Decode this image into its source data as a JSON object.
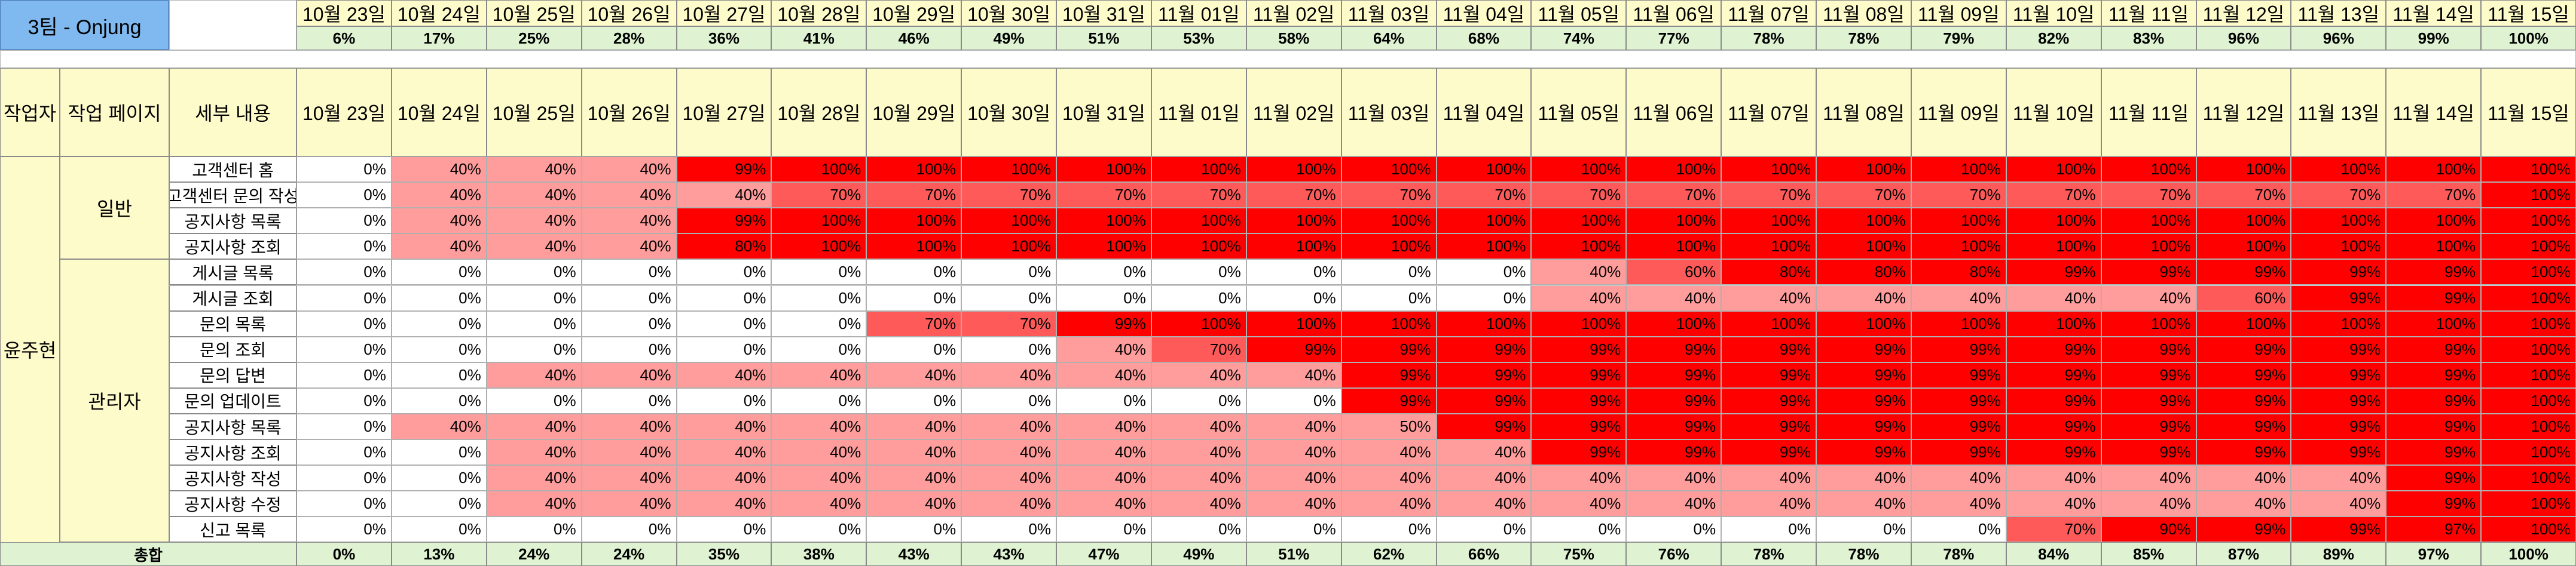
{
  "sheet": {
    "title": "3팀 - Onjung",
    "dates": [
      "10월 23일",
      "10월 24일",
      "10월 25일",
      "10월 26일",
      "10월 27일",
      "10월 28일",
      "10월 29일",
      "10월 30일",
      "10월 31일",
      "11월 01일",
      "11월 02일",
      "11월 03일",
      "11월 04일",
      "11월 05일",
      "11월 06일",
      "11월 07일",
      "11월 08일",
      "11월 09일",
      "11월 10일",
      "11월 11일",
      "11월 12일",
      "11월 13일",
      "11월 14일",
      "11월 15일"
    ],
    "top_progress": [
      "6%",
      "17%",
      "25%",
      "28%",
      "36%",
      "41%",
      "46%",
      "49%",
      "51%",
      "53%",
      "58%",
      "64%",
      "68%",
      "74%",
      "77%",
      "78%",
      "78%",
      "79%",
      "82%",
      "83%",
      "96%",
      "96%",
      "99%",
      "100%"
    ],
    "headers": {
      "author": "작업자",
      "page": "작업 페이지",
      "detail": "세부 내용"
    },
    "author": "윤주현",
    "groups": [
      {
        "name": "일반",
        "start": 0,
        "span": 4
      },
      {
        "name": "관리자",
        "start": 4,
        "span": 11
      }
    ],
    "rows": [
      {
        "task": "고객센터 홈",
        "values": [
          "0%",
          "40%",
          "40%",
          "40%",
          "99%",
          "100%",
          "100%",
          "100%",
          "100%",
          "100%",
          "100%",
          "100%",
          "100%",
          "100%",
          "100%",
          "100%",
          "100%",
          "100%",
          "100%",
          "100%",
          "100%",
          "100%",
          "100%",
          "100%"
        ]
      },
      {
        "task": "고객센터 문의 작성",
        "values": [
          "0%",
          "40%",
          "40%",
          "40%",
          "40%",
          "70%",
          "70%",
          "70%",
          "70%",
          "70%",
          "70%",
          "70%",
          "70%",
          "70%",
          "70%",
          "70%",
          "70%",
          "70%",
          "70%",
          "70%",
          "70%",
          "70%",
          "70%",
          "100%"
        ]
      },
      {
        "task": "공지사항 목록",
        "values": [
          "0%",
          "40%",
          "40%",
          "40%",
          "99%",
          "100%",
          "100%",
          "100%",
          "100%",
          "100%",
          "100%",
          "100%",
          "100%",
          "100%",
          "100%",
          "100%",
          "100%",
          "100%",
          "100%",
          "100%",
          "100%",
          "100%",
          "100%",
          "100%"
        ]
      },
      {
        "task": "공지사항 조회",
        "values": [
          "0%",
          "40%",
          "40%",
          "40%",
          "80%",
          "100%",
          "100%",
          "100%",
          "100%",
          "100%",
          "100%",
          "100%",
          "100%",
          "100%",
          "100%",
          "100%",
          "100%",
          "100%",
          "100%",
          "100%",
          "100%",
          "100%",
          "100%",
          "100%"
        ]
      },
      {
        "task": "게시글 목록",
        "values": [
          "0%",
          "0%",
          "0%",
          "0%",
          "0%",
          "0%",
          "0%",
          "0%",
          "0%",
          "0%",
          "0%",
          "0%",
          "0%",
          "40%",
          "60%",
          "80%",
          "80%",
          "80%",
          "99%",
          "99%",
          "99%",
          "99%",
          "99%",
          "100%"
        ]
      },
      {
        "task": "게시글 조회",
        "values": [
          "0%",
          "0%",
          "0%",
          "0%",
          "0%",
          "0%",
          "0%",
          "0%",
          "0%",
          "0%",
          "0%",
          "0%",
          "0%",
          "40%",
          "40%",
          "40%",
          "40%",
          "40%",
          "40%",
          "40%",
          "60%",
          "99%",
          "99%",
          "100%"
        ]
      },
      {
        "task": "문의 목록",
        "values": [
          "0%",
          "0%",
          "0%",
          "0%",
          "0%",
          "0%",
          "70%",
          "70%",
          "99%",
          "100%",
          "100%",
          "100%",
          "100%",
          "100%",
          "100%",
          "100%",
          "100%",
          "100%",
          "100%",
          "100%",
          "100%",
          "100%",
          "100%",
          "100%"
        ]
      },
      {
        "task": "문의 조회",
        "values": [
          "0%",
          "0%",
          "0%",
          "0%",
          "0%",
          "0%",
          "0%",
          "0%",
          "40%",
          "70%",
          "99%",
          "99%",
          "99%",
          "99%",
          "99%",
          "99%",
          "99%",
          "99%",
          "99%",
          "99%",
          "99%",
          "99%",
          "99%",
          "100%"
        ]
      },
      {
        "task": "문의 답변",
        "values": [
          "0%",
          "0%",
          "40%",
          "40%",
          "40%",
          "40%",
          "40%",
          "40%",
          "40%",
          "40%",
          "40%",
          "99%",
          "99%",
          "99%",
          "99%",
          "99%",
          "99%",
          "99%",
          "99%",
          "99%",
          "99%",
          "99%",
          "99%",
          "100%"
        ]
      },
      {
        "task": "문의 업데이트",
        "values": [
          "0%",
          "0%",
          "0%",
          "0%",
          "0%",
          "0%",
          "0%",
          "0%",
          "0%",
          "0%",
          "0%",
          "99%",
          "99%",
          "99%",
          "99%",
          "99%",
          "99%",
          "99%",
          "99%",
          "99%",
          "99%",
          "99%",
          "99%",
          "100%"
        ]
      },
      {
        "task": "공지사항 목록",
        "values": [
          "0%",
          "40%",
          "40%",
          "40%",
          "40%",
          "40%",
          "40%",
          "40%",
          "40%",
          "40%",
          "40%",
          "50%",
          "99%",
          "99%",
          "99%",
          "99%",
          "99%",
          "99%",
          "99%",
          "99%",
          "99%",
          "99%",
          "99%",
          "100%"
        ]
      },
      {
        "task": "공지사항 조회",
        "values": [
          "0%",
          "0%",
          "40%",
          "40%",
          "40%",
          "40%",
          "40%",
          "40%",
          "40%",
          "40%",
          "40%",
          "40%",
          "40%",
          "99%",
          "99%",
          "99%",
          "99%",
          "99%",
          "99%",
          "99%",
          "99%",
          "99%",
          "99%",
          "100%"
        ]
      },
      {
        "task": "공지사항 작성",
        "values": [
          "0%",
          "0%",
          "40%",
          "40%",
          "40%",
          "40%",
          "40%",
          "40%",
          "40%",
          "40%",
          "40%",
          "40%",
          "40%",
          "40%",
          "40%",
          "40%",
          "40%",
          "40%",
          "40%",
          "40%",
          "40%",
          "40%",
          "99%",
          "100%"
        ]
      },
      {
        "task": "공지사항 수정",
        "values": [
          "0%",
          "0%",
          "40%",
          "40%",
          "40%",
          "40%",
          "40%",
          "40%",
          "40%",
          "40%",
          "40%",
          "40%",
          "40%",
          "40%",
          "40%",
          "40%",
          "40%",
          "40%",
          "40%",
          "40%",
          "40%",
          "40%",
          "99%",
          "100%"
        ]
      },
      {
        "task": "신고 목록",
        "values": [
          "0%",
          "0%",
          "0%",
          "0%",
          "0%",
          "0%",
          "0%",
          "0%",
          "0%",
          "0%",
          "0%",
          "0%",
          "0%",
          "0%",
          "0%",
          "0%",
          "0%",
          "0%",
          "70%",
          "90%",
          "99%",
          "99%",
          "97%",
          "100%"
        ]
      }
    ],
    "total_label": "총합",
    "totals": [
      "0%",
      "13%",
      "24%",
      "24%",
      "35%",
      "38%",
      "43%",
      "43%",
      "47%",
      "49%",
      "51%",
      "62%",
      "66%",
      "75%",
      "76%",
      "78%",
      "78%",
      "78%",
      "84%",
      "85%",
      "87%",
      "89%",
      "97%",
      "100%"
    ],
    "colors": {
      "none": "#ffffff",
      "started": "#ff9c9c",
      "mid": "#ff5a5a",
      "done": "#ff0000",
      "header": "#fefbcb",
      "total": "#dff3d2",
      "title": "#7fb9f0"
    }
  }
}
